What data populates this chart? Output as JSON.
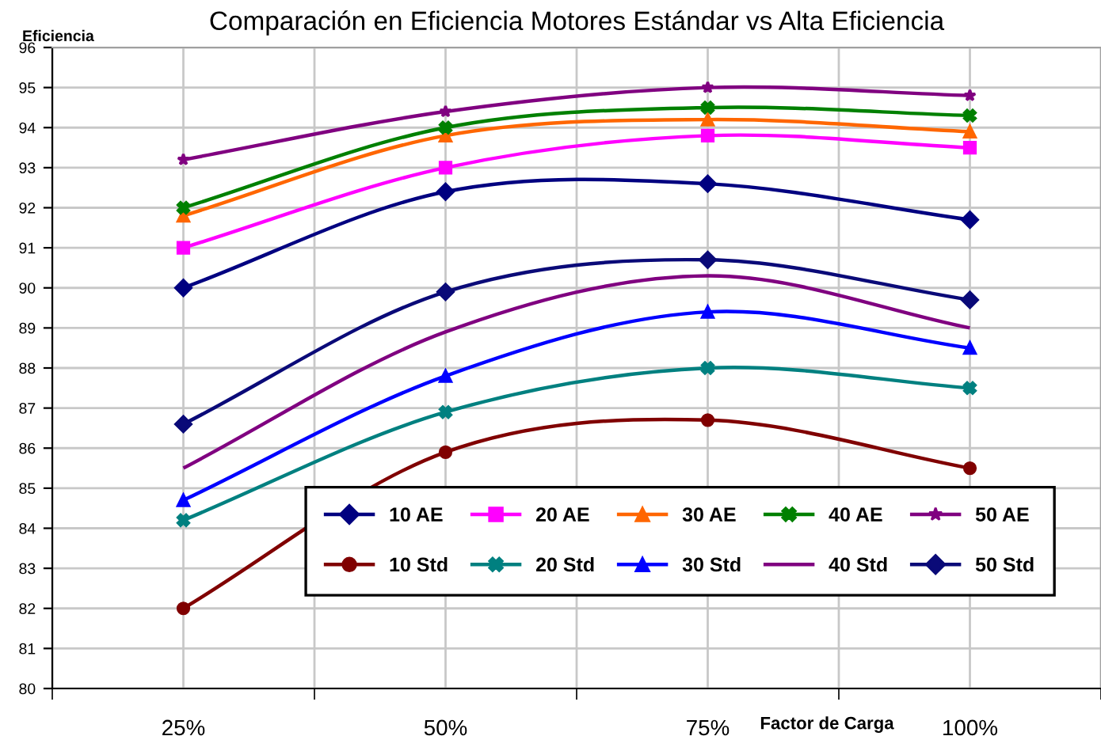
{
  "chart_data": {
    "type": "line",
    "title": "Comparación en Eficiencia Motores Estándar vs Alta Eficiencia",
    "xlabel": "Factor de Carga",
    "ylabel": "Eficiencia",
    "categories": [
      "25%",
      "50%",
      "75%",
      "100%"
    ],
    "ylim": [
      80,
      96
    ],
    "yticks": [
      80,
      81,
      82,
      83,
      84,
      85,
      86,
      87,
      88,
      89,
      90,
      91,
      92,
      93,
      94,
      95,
      96
    ],
    "grid": true,
    "legend": "bottom right",
    "line_style": "solid",
    "series": [
      {
        "name": "10 AE",
        "color": "#000080",
        "marker": "diamond",
        "values": [
          90,
          92.4,
          92.6,
          91.7
        ]
      },
      {
        "name": "20 AE",
        "color": "#ff00ff",
        "marker": "square",
        "values": [
          91,
          93,
          93.8,
          93.5
        ]
      },
      {
        "name": "30 AE",
        "color": "#ff6600",
        "marker": "triangle",
        "values": [
          91.8,
          93.8,
          94.2,
          93.9
        ]
      },
      {
        "name": "40 AE",
        "color": "#008000",
        "marker": "cross",
        "values": [
          92,
          94,
          94.5,
          94.3
        ]
      },
      {
        "name": "50 AE",
        "color": "#800080",
        "marker": "star",
        "values": [
          93.2,
          94.4,
          95,
          94.8
        ]
      },
      {
        "name": "10 Std",
        "color": "#800000",
        "marker": "circle",
        "values": [
          82,
          85.9,
          86.7,
          85.5
        ]
      },
      {
        "name": "20 Std",
        "color": "#008080",
        "marker": "cross",
        "values": [
          84.2,
          86.9,
          88,
          87.5
        ]
      },
      {
        "name": "30 Std",
        "color": "#0000ff",
        "marker": "triangle",
        "values": [
          84.7,
          87.8,
          89.4,
          88.5
        ]
      },
      {
        "name": "40 Std",
        "color": "#800080",
        "marker": "none",
        "values": [
          85.5,
          88.9,
          90.3,
          89.0
        ]
      },
      {
        "name": "50 Std",
        "color": "#0a0a78",
        "marker": "diamond",
        "values": [
          86.6,
          89.9,
          90.7,
          89.7
        ]
      }
    ]
  }
}
